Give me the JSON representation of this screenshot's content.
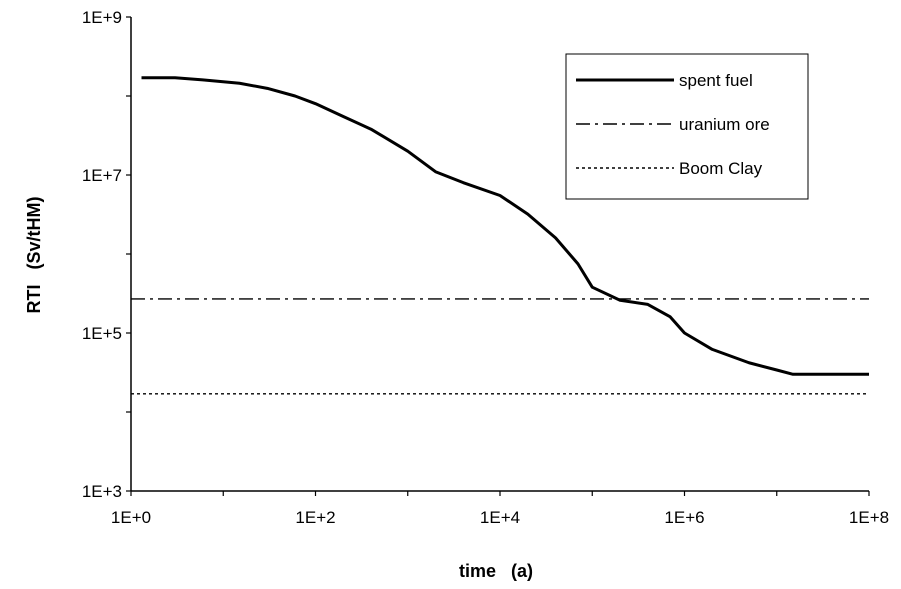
{
  "chart_data": {
    "type": "line",
    "xscale": "log",
    "yscale": "log",
    "xlim": [
      1,
      100000000
    ],
    "ylim": [
      1000,
      1000000000
    ],
    "xlabel": "time   (a)",
    "ylabel": "RTI   (Sv/tHM)",
    "x_ticks": [
      "1E+0",
      "1E+2",
      "1E+4",
      "1E+6",
      "1E+8"
    ],
    "y_ticks": [
      "1E+3",
      "1E+5",
      "1E+7",
      "1E+9"
    ],
    "grid": false,
    "legend": "top-right",
    "series": [
      {
        "name": "spent fuel",
        "style": "solid",
        "color": "#000000",
        "points": [
          [
            1.3,
            170000000
          ],
          [
            3,
            170000000
          ],
          [
            6,
            160000000
          ],
          [
            15,
            145000000
          ],
          [
            30,
            125000000
          ],
          [
            60,
            100000000
          ],
          [
            100,
            80000000
          ],
          [
            200,
            55000000
          ],
          [
            400,
            38000000
          ],
          [
            1000,
            20000000
          ],
          [
            2000,
            11000000
          ],
          [
            4000,
            8000000
          ],
          [
            10000,
            5500000
          ],
          [
            20000,
            3200000
          ],
          [
            40000,
            1600000
          ],
          [
            70000,
            750000
          ],
          [
            100000,
            380000
          ],
          [
            200000,
            260000
          ],
          [
            400000,
            230000
          ],
          [
            700000,
            160000
          ],
          [
            1000000,
            100000
          ],
          [
            2000000,
            62000
          ],
          [
            5000000,
            42000
          ],
          [
            10000000,
            34000
          ],
          [
            15000000,
            30000
          ],
          [
            100000000,
            30000
          ]
        ]
      },
      {
        "name": "uranium ore",
        "style": "dashdot",
        "color": "#000000",
        "points": [
          [
            1,
            270000
          ],
          [
            100000000,
            270000
          ]
        ]
      },
      {
        "name": "Boom Clay",
        "style": "dotted",
        "color": "#000000",
        "points": [
          [
            1,
            17000
          ],
          [
            100000000,
            17000
          ]
        ]
      }
    ]
  }
}
